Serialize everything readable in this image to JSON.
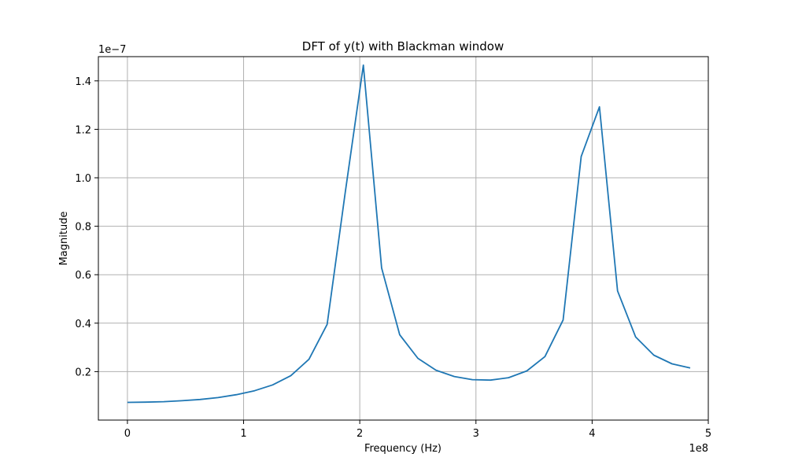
{
  "chart_data": {
    "type": "line",
    "title": "DFT of y(t) with Blackman window",
    "xlabel": "Frequency (Hz)",
    "ylabel": "Magnitude",
    "x_offset_text": "1e8",
    "y_offset_text": "1e−7",
    "xlim": [
      -0.25,
      5.0
    ],
    "ylim": [
      0.0,
      1.5
    ],
    "x_ticks": [
      0,
      1,
      2,
      3,
      4,
      5
    ],
    "x_tick_labels": [
      "0",
      "1",
      "2",
      "3",
      "4",
      "5"
    ],
    "y_ticks": [
      0.2,
      0.4,
      0.6,
      0.8,
      1.0,
      1.2,
      1.4
    ],
    "y_tick_labels": [
      "0.2",
      "0.4",
      "0.6",
      "0.8",
      "1.0",
      "1.2",
      "1.4"
    ],
    "grid": true,
    "colors": {
      "line": "#1f77b4"
    },
    "series": [
      {
        "x": [
          0.0,
          0.156,
          0.313,
          0.469,
          0.625,
          0.781,
          0.938,
          1.094,
          1.25,
          1.406,
          1.563,
          1.719,
          1.875,
          2.031,
          2.188,
          2.344,
          2.5,
          2.656,
          2.813,
          2.969,
          3.125,
          3.281,
          3.438,
          3.594,
          3.75,
          3.906,
          4.063,
          4.219,
          4.375,
          4.531,
          4.688,
          4.844
        ],
        "y": [
          0.073,
          0.074,
          0.076,
          0.08,
          0.085,
          0.093,
          0.105,
          0.121,
          0.145,
          0.183,
          0.251,
          0.395,
          0.94,
          1.465,
          0.628,
          0.352,
          0.255,
          0.206,
          0.18,
          0.167,
          0.165,
          0.175,
          0.203,
          0.262,
          0.413,
          1.088,
          1.293,
          0.533,
          0.343,
          0.268,
          0.232,
          0.215
        ]
      }
    ]
  }
}
